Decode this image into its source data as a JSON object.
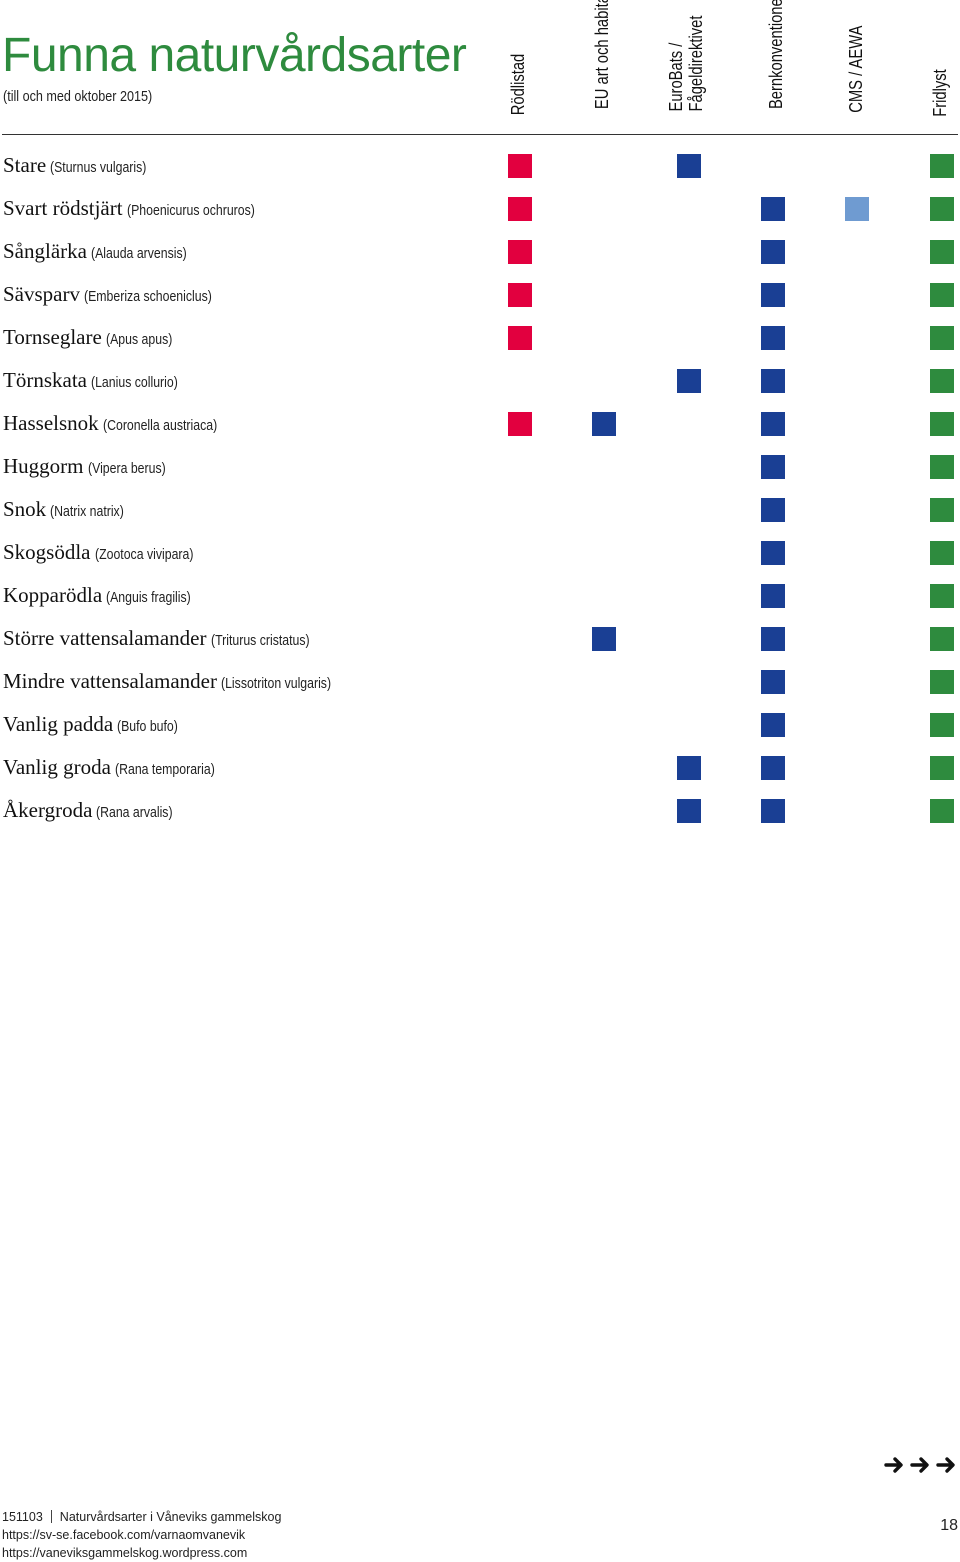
{
  "heading": {
    "title": "Funna naturvårdsarter",
    "subtitle": "(till och med oktober 2015)"
  },
  "colors": {
    "title_green": "#2e8b3e",
    "rodlistad": "#e2003f",
    "blue": "#1a3f94",
    "light_blue": "#6f9bd1",
    "fridlyst": "#2e8b3e"
  },
  "columns": [
    {
      "key": "rodlistad",
      "lines": [
        "Rödlistad"
      ]
    },
    {
      "key": "eu",
      "lines": [
        "EU art och habitat"
      ]
    },
    {
      "key": "eurobats",
      "lines": [
        "EuroBats /",
        "Fågeldirektivet"
      ]
    },
    {
      "key": "bern",
      "lines": [
        "Bernkonventionen"
      ]
    },
    {
      "key": "cms",
      "lines": [
        "CMS / AEWA"
      ]
    },
    {
      "key": "fridlyst",
      "lines": [
        "Fridlyst"
      ]
    }
  ],
  "species": [
    {
      "common": "Stare",
      "latin": "(Sturnus vulgaris)",
      "marks": [
        "rodlistad",
        "",
        "blue",
        "",
        "",
        "fridlyst"
      ]
    },
    {
      "common": "Svart rödstjärt",
      "latin": "(Phoenicurus ochruros)",
      "marks": [
        "rodlistad",
        "",
        "",
        "blue",
        "light_blue",
        "fridlyst"
      ]
    },
    {
      "common": "Sånglärka",
      "latin": "(Alauda arvensis)",
      "marks": [
        "rodlistad",
        "",
        "",
        "blue",
        "",
        "fridlyst"
      ]
    },
    {
      "common": "Sävsparv",
      "latin": "(Emberiza schoeniclus)",
      "marks": [
        "rodlistad",
        "",
        "",
        "blue",
        "",
        "fridlyst"
      ]
    },
    {
      "common": "Tornseglare",
      "latin": "(Apus apus)",
      "marks": [
        "rodlistad",
        "",
        "",
        "blue",
        "",
        "fridlyst"
      ]
    },
    {
      "common": "Törnskata",
      "latin": "(Lanius collurio)",
      "marks": [
        "",
        "",
        "blue",
        "blue",
        "",
        "fridlyst"
      ]
    },
    {
      "common": "Hasselsnok",
      "latin": "(Coronella austriaca)",
      "marks": [
        "rodlistad",
        "blue",
        "",
        "blue",
        "",
        "fridlyst"
      ]
    },
    {
      "common": "Huggorm",
      "latin": "(Vipera berus)",
      "marks": [
        "",
        "",
        "",
        "blue",
        "",
        "fridlyst"
      ]
    },
    {
      "common": "Snok",
      "latin": "(Natrix natrix)",
      "marks": [
        "",
        "",
        "",
        "blue",
        "",
        "fridlyst"
      ]
    },
    {
      "common": "Skogsödla",
      "latin": "(Zootoca vivipara)",
      "marks": [
        "",
        "",
        "",
        "blue",
        "",
        "fridlyst"
      ]
    },
    {
      "common": "Kopparödla",
      "latin": "(Anguis fragilis)",
      "marks": [
        "",
        "",
        "",
        "blue",
        "",
        "fridlyst"
      ]
    },
    {
      "common": "Större vattensalamander",
      "latin": "(Triturus cristatus)",
      "marks": [
        "",
        "blue",
        "",
        "blue",
        "",
        "fridlyst"
      ]
    },
    {
      "common": "Mindre vattensalamander",
      "latin": "(Lissotriton vulgaris)",
      "marks": [
        "",
        "",
        "",
        "blue",
        "",
        "fridlyst"
      ]
    },
    {
      "common": "Vanlig padda",
      "latin": "(Bufo bufo)",
      "marks": [
        "",
        "",
        "",
        "blue",
        "",
        "fridlyst"
      ]
    },
    {
      "common": "Vanlig groda",
      "latin": "(Rana temporaria)",
      "marks": [
        "",
        "",
        "blue",
        "blue",
        "",
        "fridlyst"
      ]
    },
    {
      "common": "Åkergroda",
      "latin": "(Rana arvalis)",
      "marks": [
        "",
        "",
        "blue",
        "blue",
        "",
        "fridlyst"
      ]
    }
  ],
  "footer": {
    "code": "151103",
    "doc_title": "Naturvårdsarter i Våneviks gammelskog",
    "facebook": "https://sv-se.facebook.com/varnaomvanevik",
    "blog": "https://vaneviksgammelskog.wordpress.com",
    "page_number": "18",
    "arrow_icons": [
      "arrow-right-icon",
      "arrow-right-icon",
      "arrow-right-icon"
    ]
  }
}
